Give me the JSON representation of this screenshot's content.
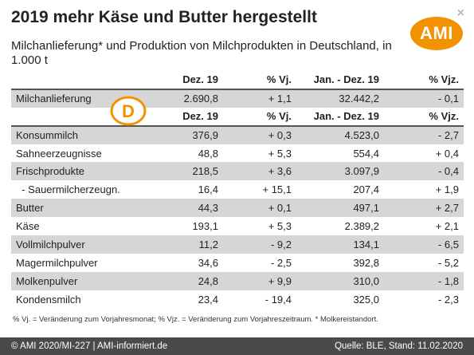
{
  "header": {
    "title": "2019 mehr Käse und Butter hergestellt",
    "subtitle": "Milchanlieferung* und Produktion von Milchprodukten in Deutschland, in 1.000 t",
    "close_glyph": "×",
    "logo_text": "AMI"
  },
  "badge_letter": "D",
  "table": {
    "columns": [
      "",
      "Dez. 19",
      "% Vj.",
      "Jan. - Dez. 19",
      "% Vjz."
    ],
    "first_row": {
      "label": "Milchanlieferung",
      "v1": "2.690,8",
      "v2": "+ 1,1",
      "v3": "32.442,2",
      "v4": "- 0,1"
    },
    "columns_repeat": [
      "",
      "Dez. 19",
      "% Vj.",
      "Jan. - Dez. 19",
      "% Vjz."
    ],
    "rows": [
      {
        "label": "Konsummilch",
        "v1": "376,9",
        "v2": "+ 0,3",
        "v3": "4.523,0",
        "v4": "- 2,7"
      },
      {
        "label": "Sahneerzeugnisse",
        "v1": "48,8",
        "v2": "+ 5,3",
        "v3": "554,4",
        "v4": "+ 0,4"
      },
      {
        "label": "Frischprodukte",
        "v1": "218,5",
        "v2": "+ 3,6",
        "v3": "3.097,9",
        "v4": "- 0,4"
      },
      {
        "label": "  - Sauermilcherzeugn.",
        "v1": "16,4",
        "v2": "+ 15,1",
        "v3": "207,4",
        "v4": "+ 1,9"
      },
      {
        "label": "Butter",
        "v1": "44,3",
        "v2": "+ 0,1",
        "v3": "497,1",
        "v4": "+ 2,7"
      },
      {
        "label": "Käse",
        "v1": "193,1",
        "v2": "+ 5,3",
        "v3": "2.389,2",
        "v4": "+ 2,1"
      },
      {
        "label": "Vollmilchpulver",
        "v1": "11,2",
        "v2": "- 9,2",
        "v3": "134,1",
        "v4": "- 6,5"
      },
      {
        "label": "Magermilchpulver",
        "v1": "34,6",
        "v2": "- 2,5",
        "v3": "392,8",
        "v4": "- 5,2"
      },
      {
        "label": "Molkenpulver",
        "v1": "24,8",
        "v2": "+ 9,9",
        "v3": "310,0",
        "v4": "- 1,8"
      },
      {
        "label": "Kondensmilch",
        "v1": "23,4",
        "v2": "- 19,4",
        "v3": "325,0",
        "v4": "- 2,3"
      }
    ]
  },
  "footnote": "% Vj. = Veränderung zum Vorjahresmonat; % Vjz. = Veränderung zum Vorjahreszeitraum. * Molkereistandort.",
  "footer": {
    "left": "© AMI 2020/MI-227 | AMI-informiert.de",
    "right": "Quelle: BLE, Stand: 11.02.2020"
  },
  "colors": {
    "accent": "#f39200",
    "shaded_row": "#d6d6d6",
    "footer_bg": "#4a4a4a"
  }
}
